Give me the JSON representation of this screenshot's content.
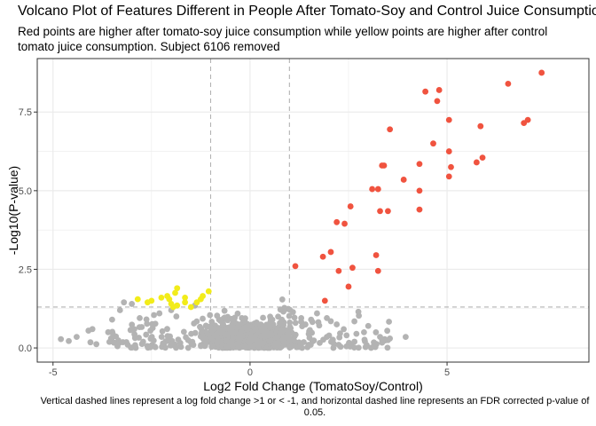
{
  "chart_data": {
    "type": "scatter",
    "title": "Volcano Plot of Features Different in People After Tomato-Soy and Control Juice Consumption",
    "subtitle": "Red points are higher after tomato-soy juice consumption while yellow points are higher after control tomato juice consumption. Subject 6106 removed",
    "caption": "Vertical dashed lines represent a log fold change >1 or < -1, and horizontal dashed line represents an FDR corrected p-value of 0.05.",
    "xlabel": "Log2 Fold Change (TomatoSoy/Control)",
    "ylabel": "-Log10(P-value)",
    "xlim": [
      -5.4,
      8.6
    ],
    "ylim": [
      -0.45,
      9.2
    ],
    "x_ticks": [
      -5,
      0,
      5
    ],
    "x_tick_labels": [
      "-5",
      "0",
      "5"
    ],
    "y_ticks": [
      0,
      2.5,
      5,
      7.5
    ],
    "y_tick_labels": [
      "0.0",
      "2.5",
      "5.0",
      "7.5"
    ],
    "grid": true,
    "reference_lines": {
      "vertical": [
        -1,
        1
      ],
      "horizontal": [
        1.3
      ]
    },
    "colors": {
      "higher_tomato_soy": "#f0533f",
      "higher_control": "#f2ec1a",
      "not_significant": "#b3b3b3",
      "reference_line": "#b3b3b3",
      "grid": "#ebebeb",
      "panel_border": "#333333"
    },
    "series": [
      {
        "group": "higher_tomato_soy",
        "points": [
          [
            7.4,
            8.75
          ],
          [
            6.55,
            8.4
          ],
          [
            4.45,
            8.15
          ],
          [
            4.8,
            8.2
          ],
          [
            4.75,
            7.85
          ],
          [
            5.05,
            7.25
          ],
          [
            7.05,
            7.25
          ],
          [
            6.95,
            7.15
          ],
          [
            5.85,
            7.05
          ],
          [
            3.55,
            6.95
          ],
          [
            4.65,
            6.5
          ],
          [
            5.05,
            6.25
          ],
          [
            5.9,
            6.05
          ],
          [
            5.75,
            5.9
          ],
          [
            4.3,
            5.85
          ],
          [
            3.35,
            5.8
          ],
          [
            3.4,
            5.8
          ],
          [
            5.1,
            5.75
          ],
          [
            3.9,
            5.35
          ],
          [
            5.05,
            5.45
          ],
          [
            3.1,
            5.05
          ],
          [
            3.25,
            5.05
          ],
          [
            4.3,
            5.0
          ],
          [
            2.55,
            4.5
          ],
          [
            3.3,
            4.35
          ],
          [
            3.5,
            4.35
          ],
          [
            4.3,
            4.4
          ],
          [
            2.2,
            4.0
          ],
          [
            2.4,
            3.95
          ],
          [
            2.05,
            3.05
          ],
          [
            3.2,
            2.95
          ],
          [
            1.85,
            2.9
          ],
          [
            2.6,
            2.55
          ],
          [
            1.15,
            2.6
          ],
          [
            3.25,
            2.45
          ],
          [
            2.25,
            2.45
          ],
          [
            2.5,
            1.95
          ],
          [
            1.9,
            1.5
          ]
        ]
      },
      {
        "group": "higher_control",
        "points": [
          [
            -2.85,
            1.55
          ],
          [
            -2.5,
            1.5
          ],
          [
            -2.25,
            1.6
          ],
          [
            -2.1,
            1.65
          ],
          [
            -2.05,
            1.55
          ],
          [
            -1.9,
            1.75
          ],
          [
            -1.85,
            1.9
          ],
          [
            -1.65,
            1.6
          ],
          [
            -1.2,
            1.65
          ],
          [
            -1.05,
            1.8
          ],
          [
            -2.0,
            1.4
          ],
          [
            -1.85,
            1.35
          ],
          [
            -1.65,
            1.45
          ],
          [
            -1.35,
            1.45
          ],
          [
            -1.25,
            1.55
          ],
          [
            -2.6,
            1.45
          ],
          [
            -1.95,
            1.3
          ],
          [
            -1.5,
            1.3
          ]
        ]
      }
    ]
  }
}
